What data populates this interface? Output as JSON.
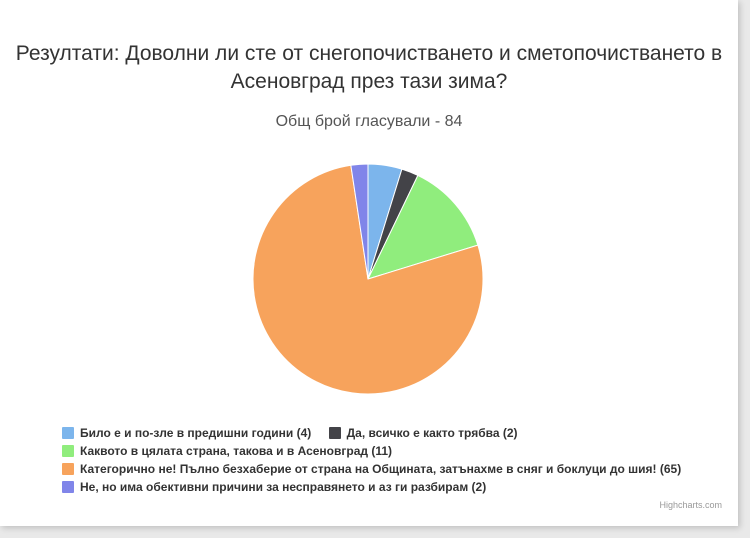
{
  "chart_data": {
    "type": "pie",
    "title": "Резултати: Доволни ли сте от снегопочистването и сметопочистването в Асеновград през тази зима?",
    "subtitle": "Общ брой гласували - 84",
    "slices": [
      {
        "label": "Било е и по-зле в предишни години (4)",
        "value": 4,
        "color": "#7cb5ec"
      },
      {
        "label": "Да, всичко е както трябва (2)",
        "value": 2,
        "color": "#434348"
      },
      {
        "label": "Каквото в цялата страна, такова и в Асеновград (11)",
        "value": 11,
        "color": "#90ed7d"
      },
      {
        "label": "Категорично не! Пълно безхаберие от страна на Общината, затънахме в сняг и боклуци до шия! (65)",
        "value": 65,
        "color": "#f7a35c"
      },
      {
        "label": "Не, но има обективни причини за несправянето и аз ги разбирам (2)",
        "value": 2,
        "color": "#8085e9"
      }
    ],
    "legend_position": "bottom-left"
  },
  "credits": "Highcharts.com"
}
